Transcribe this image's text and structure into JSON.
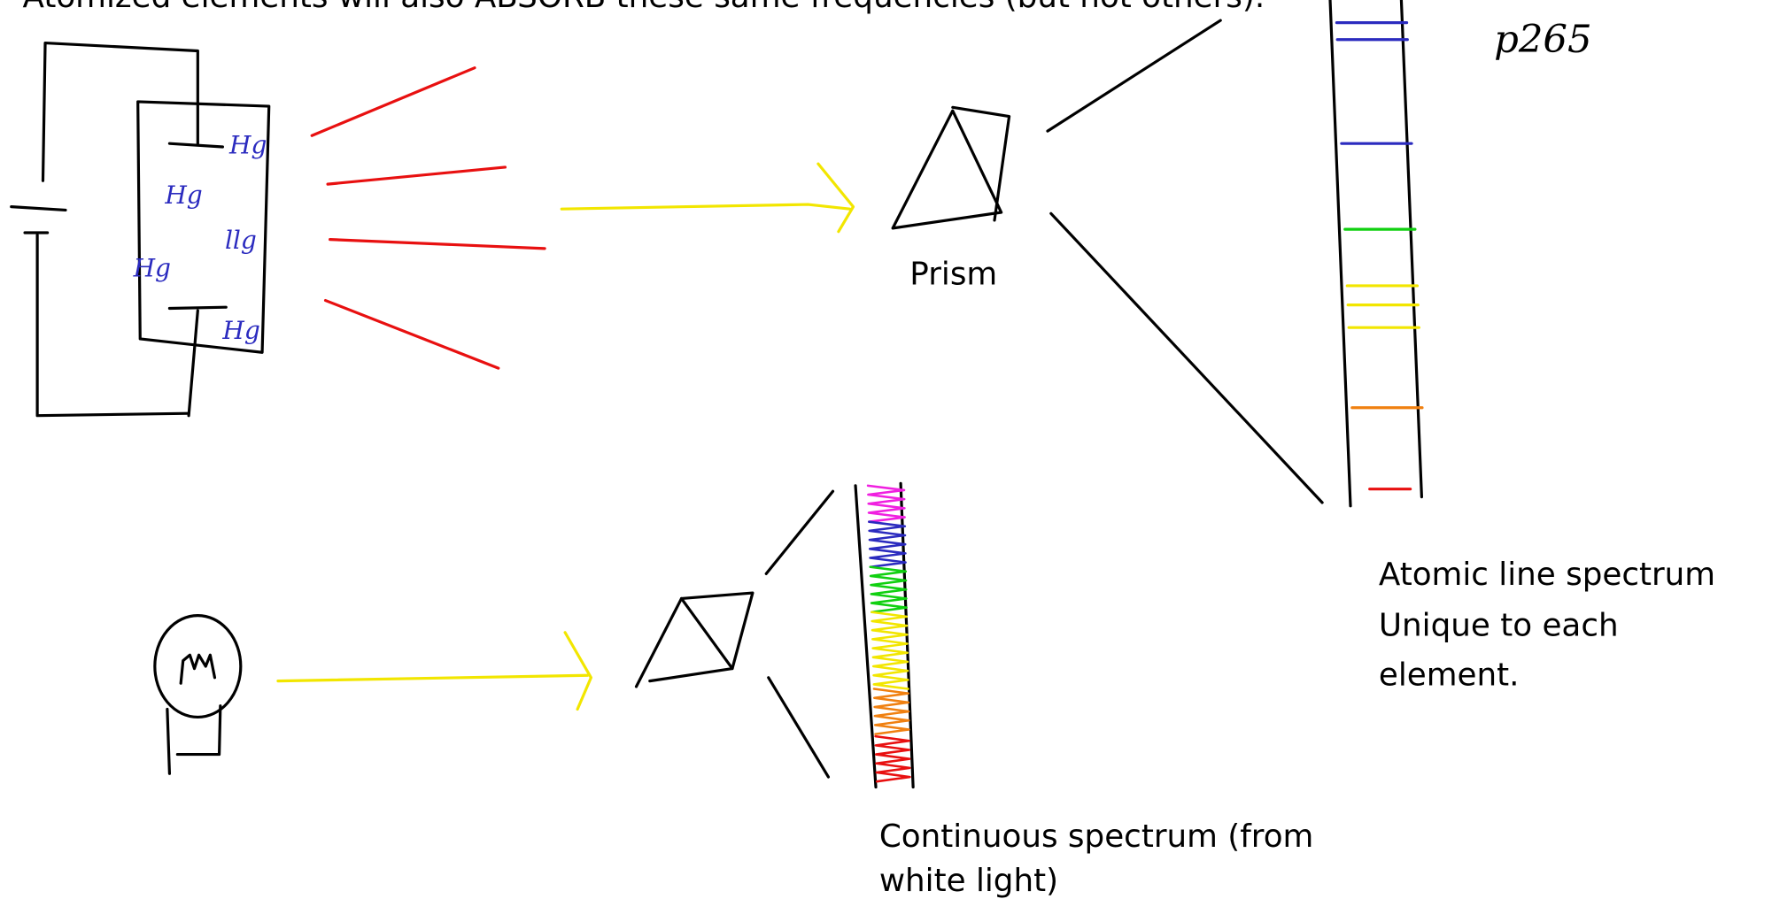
{
  "header": {
    "title": "Atomized elements will also ABSORB these same frequencies (but not others)."
  },
  "page_ref": "p265",
  "tube_labels": [
    "Hg",
    "Hg",
    "llg",
    "Hg",
    "Hg"
  ],
  "prism_label": "Prism",
  "line_spectrum": {
    "lines": [
      "Atomic line spectrum",
      "Unique to each",
      "element."
    ]
  },
  "continuous_spectrum": {
    "lines": [
      "Continuous spectrum (from",
      "white light)"
    ]
  }
}
